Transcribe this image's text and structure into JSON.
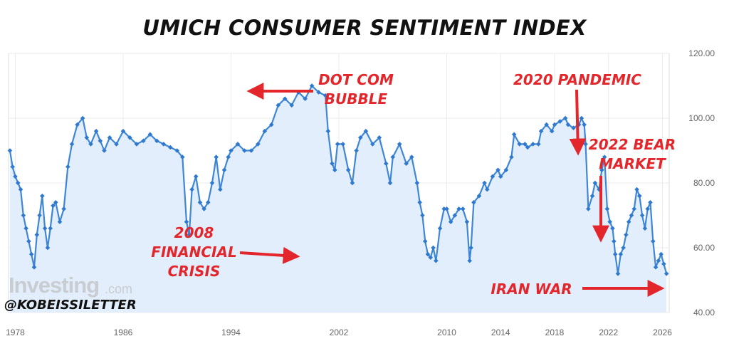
{
  "chart_data": {
    "type": "line",
    "title": "UMICH CONSUMER SENTIMENT INDEX",
    "xlabel": "",
    "ylabel": "",
    "ylim": [
      40,
      120
    ],
    "xlim": [
      1977.5,
      2026.5
    ],
    "y_ticks": [
      40,
      60,
      80,
      100,
      120
    ],
    "y_tick_labels": [
      "40.00",
      "60.00",
      "80.00",
      "100.00",
      "120.00"
    ],
    "x_ticks": [
      1978,
      1986,
      1994,
      2002,
      2010,
      2014,
      2018,
      2022,
      2026
    ],
    "x_tick_labels": [
      "1978",
      "1986",
      "1994",
      "2002",
      "2010",
      "2014",
      "2018",
      "2022",
      "2026"
    ],
    "grid": true,
    "legend": "none",
    "series": [
      {
        "name": "UMICH Consumer Sentiment",
        "x": [
          1977.6,
          1977.8,
          1978.0,
          1978.2,
          1978.4,
          1978.6,
          1978.8,
          1979.0,
          1979.2,
          1979.4,
          1979.6,
          1979.8,
          1980.0,
          1980.2,
          1980.4,
          1980.6,
          1980.8,
          1981.0,
          1981.3,
          1981.6,
          1981.9,
          1982.2,
          1982.6,
          1983.0,
          1983.3,
          1983.6,
          1984.0,
          1984.3,
          1984.6,
          1985.0,
          1985.5,
          1986.0,
          1986.5,
          1987.0,
          1987.5,
          1988.0,
          1988.5,
          1989.0,
          1989.5,
          1990.0,
          1990.4,
          1990.7,
          1990.9,
          1991.1,
          1991.4,
          1991.7,
          1992.0,
          1992.3,
          1992.6,
          1992.9,
          1993.2,
          1993.5,
          1993.8,
          1994.0,
          1994.5,
          1995.0,
          1995.5,
          1996.0,
          1996.5,
          1997.0,
          1997.5,
          1998.0,
          1998.5,
          1999.0,
          1999.5,
          2000.0,
          2000.5,
          2001.0,
          2001.2,
          2001.5,
          2001.7,
          2001.9,
          2002.3,
          2002.7,
          2003.0,
          2003.3,
          2003.6,
          2004.0,
          2004.5,
          2005.0,
          2005.5,
          2005.8,
          2006.0,
          2006.5,
          2007.0,
          2007.4,
          2007.8,
          2008.0,
          2008.2,
          2008.4,
          2008.6,
          2008.8,
          2009.0,
          2009.2,
          2009.5,
          2009.8,
          2010.0,
          2010.3,
          2010.6,
          2010.9,
          2011.2,
          2011.5,
          2011.7,
          2011.8,
          2012.0,
          2012.4,
          2012.8,
          2013.0,
          2013.4,
          2013.8,
          2014.0,
          2014.4,
          2014.8,
          2015.0,
          2015.4,
          2015.8,
          2016.0,
          2016.4,
          2016.8,
          2017.0,
          2017.4,
          2017.8,
          2018.0,
          2018.4,
          2018.8,
          2019.0,
          2019.4,
          2019.8,
          2020.0,
          2020.2,
          2020.3,
          2020.5,
          2020.8,
          2021.0,
          2021.3,
          2021.5,
          2021.7,
          2021.9,
          2022.1,
          2022.3,
          2022.4,
          2022.5,
          2022.7,
          2022.9,
          2023.1,
          2023.3,
          2023.5,
          2023.7,
          2023.9,
          2024.1,
          2024.3,
          2024.5,
          2024.7,
          2024.9,
          2025.1,
          2025.3,
          2025.5,
          2025.7,
          2025.9,
          2026.1,
          2026.3
        ],
        "values": [
          90,
          85,
          82,
          80,
          78,
          70,
          66,
          62,
          58,
          54,
          64,
          70,
          76,
          66,
          60,
          66,
          73,
          74,
          68,
          72,
          85,
          92,
          98,
          100,
          94,
          92,
          96,
          93,
          90,
          94,
          92,
          96,
          94,
          92,
          93,
          95,
          93,
          92,
          91,
          90,
          88,
          68,
          64,
          78,
          82,
          74,
          72,
          74,
          80,
          88,
          78,
          84,
          88,
          90,
          92,
          90,
          90,
          92,
          96,
          98,
          104,
          106,
          104,
          108,
          106,
          110,
          108,
          107,
          96,
          86,
          84,
          92,
          92,
          84,
          80,
          90,
          94,
          96,
          92,
          94,
          86,
          80,
          88,
          92,
          86,
          88,
          80,
          74,
          70,
          62,
          58,
          57,
          60,
          56,
          66,
          72,
          72,
          68,
          70,
          72,
          72,
          68,
          56,
          60,
          74,
          76,
          80,
          78,
          82,
          84,
          82,
          84,
          88,
          95,
          92,
          92,
          91,
          92,
          92,
          96,
          98,
          96,
          98,
          99,
          100,
          98,
          97,
          98,
          100,
          98,
          92,
          72,
          76,
          80,
          78,
          84,
          88,
          72,
          68,
          66,
          62,
          58,
          52,
          58,
          60,
          64,
          68,
          70,
          72,
          78,
          76,
          70,
          66,
          72,
          74,
          62,
          54,
          56,
          58,
          55,
          52
        ]
      }
    ],
    "colors": {
      "line": "#3f87d6",
      "fill": "#e2eefb",
      "marker": "#2f79cf",
      "grid": "#ebebeb",
      "annotation": "#e3262b"
    }
  },
  "annotations": [
    {
      "id": "dotcom",
      "lines": [
        "DOT COM",
        "BUBBLE"
      ]
    },
    {
      "id": "financial",
      "lines": [
        "2008",
        "FINANCIAL",
        "CRISIS"
      ]
    },
    {
      "id": "pandemic",
      "lines": [
        "2020 PANDEMIC"
      ]
    },
    {
      "id": "bear",
      "lines": [
        "2022 BEAR",
        "MARKET"
      ]
    },
    {
      "id": "iran",
      "lines": [
        "IRAN WAR"
      ]
    }
  ],
  "watermark": {
    "brand": "Investing",
    "domain": ".com"
  },
  "handle": "@KOBEISSILETTER"
}
